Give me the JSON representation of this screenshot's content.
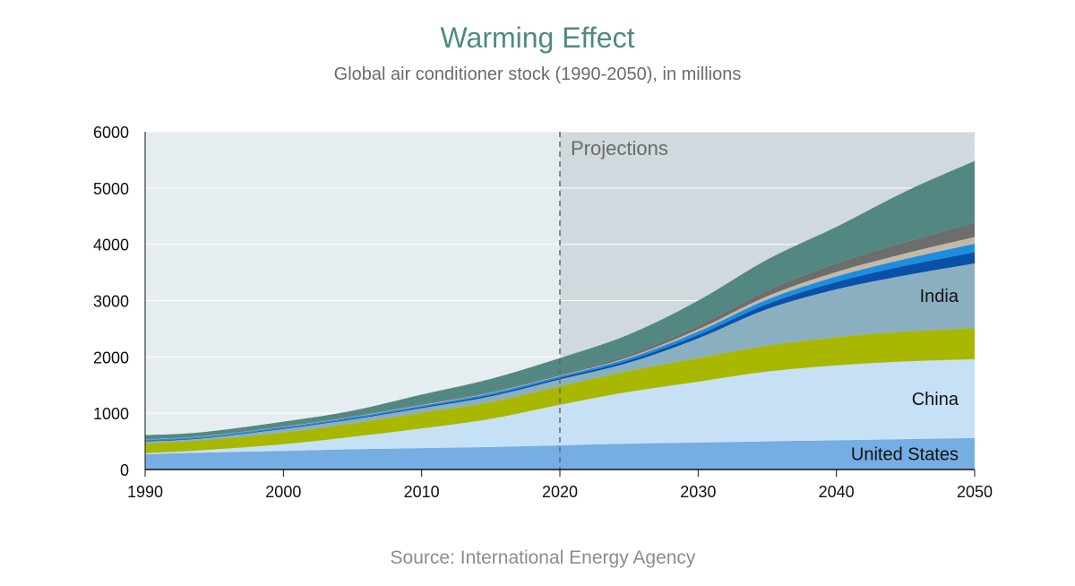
{
  "header": {
    "title": "Warming Effect",
    "subtitle": "Global air conditioner stock (1990-2050), in millions"
  },
  "footer": {
    "source": "Source:  International Energy Agency"
  },
  "colors": {
    "history_bg": "#e6edf0",
    "projection_bg": "#d0d9dd",
    "divider": "#666666"
  },
  "chart_data": {
    "type": "area",
    "stacked": true,
    "title": "Warming Effect",
    "subtitle": "Global air conditioner stock (1990-2050), in millions",
    "xlabel": "",
    "ylabel": "",
    "xlim": [
      1990,
      2050
    ],
    "ylim": [
      0,
      6000
    ],
    "x_ticks": [
      1990,
      2000,
      2010,
      2020,
      2030,
      2040,
      2050
    ],
    "y_ticks": [
      0,
      1000,
      2000,
      3000,
      4000,
      5000,
      6000
    ],
    "grid": true,
    "projection_start": 2020,
    "projection_label": "Projections",
    "x": [
      1990,
      1994,
      2000,
      2005,
      2010,
      2015,
      2020,
      2025,
      2030,
      2035,
      2040,
      2045,
      2050
    ],
    "series": [
      {
        "name": "United States",
        "color": "#76ade3",
        "values": [
          270,
          300,
          330,
          360,
          380,
          400,
          430,
          460,
          480,
          500,
          520,
          540,
          560
        ]
      },
      {
        "name": "China",
        "color": "#c6e1f6",
        "values": [
          20,
          40,
          120,
          220,
          350,
          500,
          720,
          920,
          1080,
          1240,
          1330,
          1380,
          1400
        ]
      },
      {
        "color": "#a8b800",
        "values": [
          180,
          180,
          210,
          240,
          280,
          300,
          330,
          370,
          420,
          460,
          500,
          530,
          550
        ]
      },
      {
        "name": "India",
        "color": "#8aafc1",
        "values": [
          30,
          30,
          60,
          70,
          80,
          100,
          120,
          150,
          350,
          650,
          850,
          1000,
          1150
        ]
      },
      {
        "color": "#0a4fa8",
        "values": [
          10,
          10,
          15,
          15,
          20,
          25,
          30,
          40,
          60,
          90,
          130,
          170,
          200
        ]
      },
      {
        "color": "#1a8fe0",
        "values": [
          20,
          20,
          20,
          25,
          25,
          30,
          30,
          40,
          60,
          80,
          100,
          120,
          150
        ]
      },
      {
        "color": "#c4b8a8",
        "values": [
          5,
          5,
          5,
          5,
          10,
          10,
          10,
          20,
          40,
          60,
          80,
          100,
          120
        ]
      },
      {
        "color": "#6d6d6d",
        "values": [
          5,
          5,
          10,
          10,
          15,
          15,
          20,
          40,
          60,
          100,
          150,
          200,
          250
        ]
      },
      {
        "color": "#538882",
        "values": [
          70,
          70,
          80,
          100,
          170,
          230,
          290,
          360,
          450,
          550,
          650,
          900,
          1100
        ]
      }
    ],
    "labels": [
      {
        "series": "United States",
        "text": "United States"
      },
      {
        "series": "China",
        "text": "China"
      },
      {
        "series": "India",
        "text": "India"
      }
    ]
  }
}
